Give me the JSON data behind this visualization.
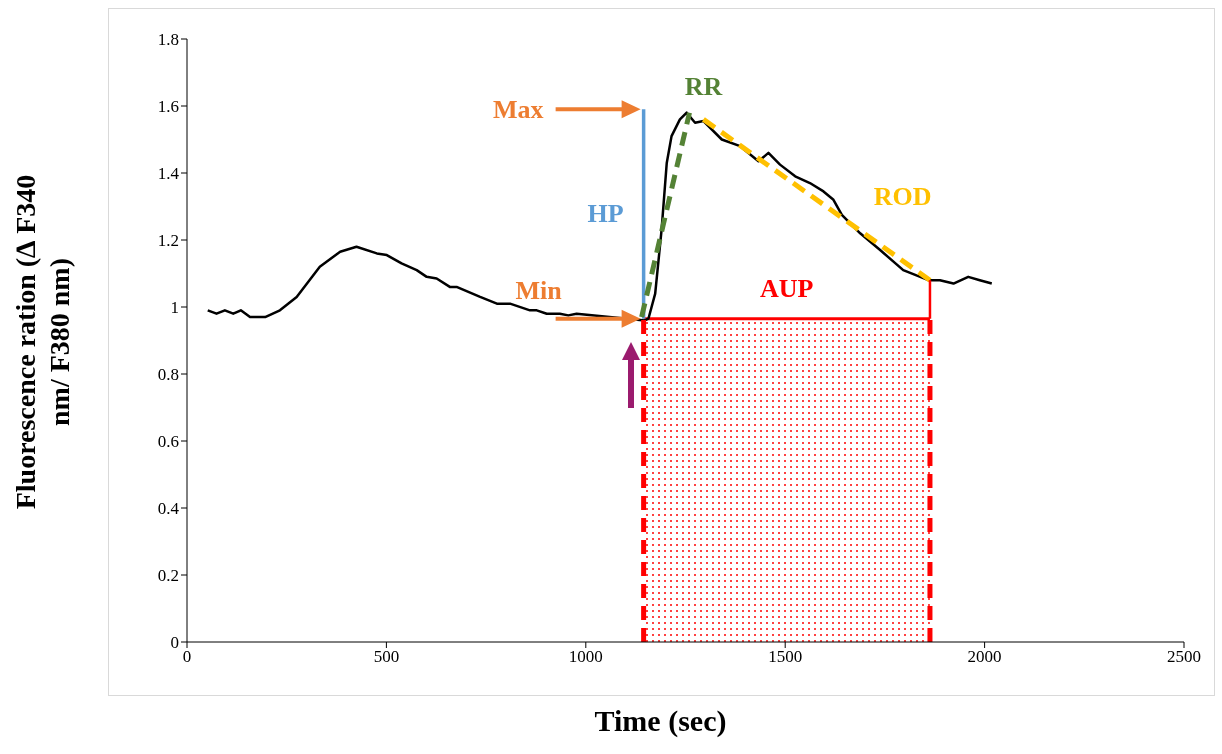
{
  "chart_data": {
    "type": "line",
    "xlabel": "Time (sec)",
    "ylabel": "Fluorescence ration (∆ F340 nm/ F380 nm)",
    "xlim": [
      0,
      2500
    ],
    "xticks": [
      0,
      500,
      1000,
      1500,
      2000,
      2500
    ],
    "ylim": [
      0,
      1.8
    ],
    "yticks": [
      0,
      0.2,
      0.4,
      0.6,
      0.8,
      1,
      1.2,
      1.4,
      1.6,
      1.8
    ],
    "grid": false,
    "legend": false,
    "marker": "none",
    "series": [
      {
        "color": "#000000",
        "line_style": "solid",
        "x": [
          52,
          74,
          95,
          116,
          135,
          158,
          196,
          233,
          275,
          333,
          384,
          425,
          476,
          501,
          538,
          576,
          601,
          626,
          659,
          676,
          735,
          777,
          810,
          860,
          877,
          902,
          935,
          956,
          977,
          1111,
          1148,
          1157,
          1174,
          1190,
          1203,
          1215,
          1236,
          1253,
          1274,
          1295,
          1341,
          1387,
          1433,
          1458,
          1487,
          1525,
          1562,
          1596,
          1621,
          1642,
          1688,
          1738,
          1796,
          1859,
          1888,
          1922,
          1959,
          1988,
          2018
        ],
        "values": [
          0.99,
          0.98,
          0.99,
          0.98,
          0.99,
          0.97,
          0.97,
          0.99,
          1.03,
          1.12,
          1.165,
          1.18,
          1.16,
          1.155,
          1.13,
          1.11,
          1.09,
          1.085,
          1.06,
          1.06,
          1.03,
          1.01,
          1.01,
          0.99,
          0.99,
          0.98,
          0.98,
          0.975,
          0.98,
          null,
          0.96,
          0.965,
          1.04,
          1.23,
          1.43,
          1.51,
          1.56,
          1.58,
          1.55,
          1.555,
          1.5,
          1.48,
          1.435,
          1.46,
          1.425,
          1.39,
          1.37,
          1.345,
          1.32,
          1.275,
          1.22,
          1.17,
          1.11,
          1.08,
          1.08,
          1.07,
          1.09,
          1.08,
          1.07
        ]
      },
      {
        "name": "HP",
        "color": "#5b9bd5",
        "line_style": "solid",
        "x": [
          1145,
          1145
        ],
        "values": [
          0.965,
          1.59
        ]
      },
      {
        "name": "RR",
        "color": "#548235",
        "line_style": "dashed",
        "x": [
          1140,
          1260
        ],
        "values": [
          0.97,
          1.58
        ]
      },
      {
        "name": "ROD",
        "color": "#ffc000",
        "line_style": "dashed",
        "x": [
          1295,
          1863
        ],
        "values": [
          1.56,
          1.08
        ]
      },
      {
        "type": "area",
        "name": "AUP",
        "color": "#ff0000",
        "x": [
          1145,
          1863
        ],
        "values": [
          0.965,
          0.965
        ]
      },
      {
        "color": "#ff0000",
        "line_style": "dashed",
        "x": [
          1145,
          1145
        ],
        "values": [
          0,
          0.965
        ]
      },
      {
        "color": "#ff0000",
        "line_style": "dashed",
        "x": [
          1863,
          1863
        ],
        "values": [
          0,
          0.965
        ]
      },
      {
        "color": "#ff0000",
        "line_style": "solid",
        "x": [
          1863,
          1863
        ],
        "values": [
          0.965,
          1.08
        ]
      }
    ],
    "annotations": [
      "Max",
      "Min"
    ]
  }
}
